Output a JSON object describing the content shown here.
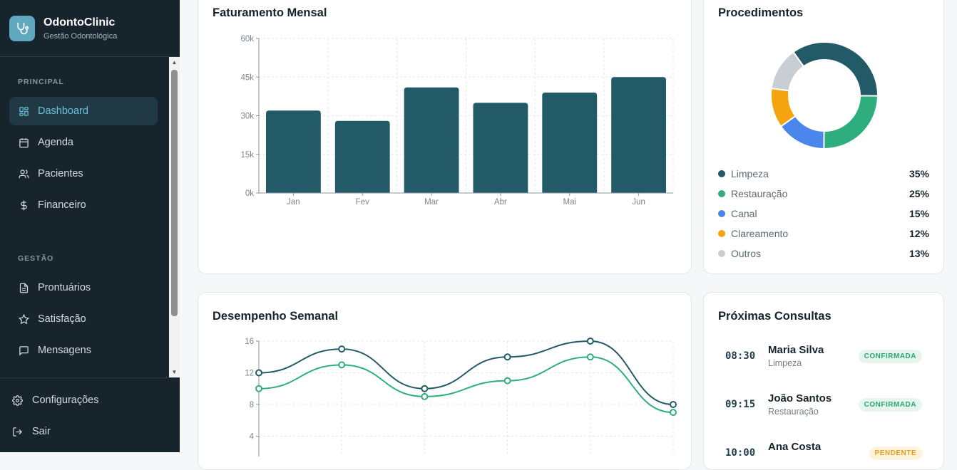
{
  "brand": {
    "name": "OdontoClinic",
    "subtitle": "Gestão Odontológica"
  },
  "sidebar": {
    "section_principal": "PRINCIPAL",
    "section_gestao": "GESTÃO",
    "items": [
      {
        "label": "Dashboard",
        "icon": "grid-icon",
        "active": true
      },
      {
        "label": "Agenda",
        "icon": "calendar-icon"
      },
      {
        "label": "Pacientes",
        "icon": "users-icon"
      },
      {
        "label": "Financeiro",
        "icon": "dollar-icon"
      },
      {
        "label": "Prontuários",
        "icon": "file-icon"
      },
      {
        "label": "Satisfação",
        "icon": "star-icon"
      },
      {
        "label": "Mensagens",
        "icon": "message-icon"
      }
    ],
    "bottom": [
      {
        "label": "Configurações",
        "icon": "gear-icon"
      },
      {
        "label": "Sair",
        "icon": "logout-icon"
      }
    ]
  },
  "revenue": {
    "title": "Faturamento Mensal",
    "chart_data": {
      "type": "bar",
      "categories": [
        "Jan",
        "Fev",
        "Mar",
        "Abr",
        "Mai",
        "Jun"
      ],
      "values": [
        32000,
        28000,
        41000,
        35000,
        39000,
        45000
      ],
      "ylim": [
        0,
        60000
      ],
      "yticks": [
        "0k",
        "15k",
        "30k",
        "45k",
        "60k"
      ],
      "grid": true,
      "color": "#235a68"
    }
  },
  "procedures": {
    "title": "Procedimentos",
    "chart_data": {
      "type": "pie",
      "categories": [
        "Limpeza",
        "Restauração",
        "Canal",
        "Clareamento",
        "Outros"
      ],
      "values": [
        35,
        25,
        15,
        12,
        13
      ],
      "labels": [
        "35%",
        "25%",
        "15%",
        "12%",
        "13%"
      ],
      "colors": [
        "#235a68",
        "#2ead7f",
        "#4b86ec",
        "#f3a40f",
        "#c9ced4"
      ]
    }
  },
  "weekly": {
    "title": "Desempenho Semanal",
    "chart_data": {
      "type": "line",
      "ylim": [
        0,
        16
      ],
      "yticks": [
        "4",
        "8",
        "12",
        "16"
      ],
      "grid": true,
      "series": [
        {
          "values": [
            12,
            15,
            10,
            14,
            16,
            8
          ],
          "color": "#235a68"
        },
        {
          "values": [
            10,
            13,
            9,
            11,
            14,
            7
          ],
          "color": "#2ead7f"
        }
      ]
    }
  },
  "appointments": {
    "title": "Próximas Consultas",
    "items": [
      {
        "time": "08:30",
        "name": "Maria Silva",
        "procedure": "Limpeza",
        "status": "CONFIRMADA",
        "state": "ok"
      },
      {
        "time": "09:15",
        "name": "João Santos",
        "procedure": "Restauração",
        "status": "CONFIRMADA",
        "state": "ok"
      },
      {
        "time": "10:00",
        "name": "Ana Costa",
        "procedure": "",
        "status": "PENDENTE",
        "state": "pend"
      }
    ]
  }
}
